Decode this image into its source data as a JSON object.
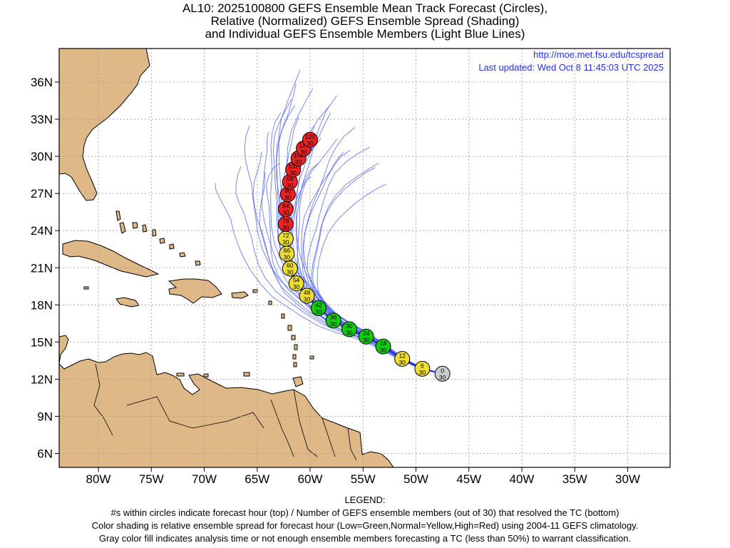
{
  "title": {
    "line1": "AL10: 2025100800 GEFS Ensemble Mean Track Forecast (Circles),",
    "line2": "Relative (Normalized) GEFS Ensemble Spread (Shading)",
    "line3": "and Individual GEFS Ensemble Members (Light Blue Lines)"
  },
  "credit": {
    "url": "http://moe.met.fsu.edu/tcspread",
    "updated": "Last updated: Wed Oct 8 11:45:03 UTC 2025"
  },
  "legend": {
    "heading": "LEGEND:",
    "line1": "#s within circles indicate forecast hour (top) / Number of GEFS ensemble members (out of 30) that resolved the TC (bottom)",
    "line2": "Color shading is relative ensemble spread for forecast hour (Low=Green,Normal=Yellow,High=Red) using 2004-11 GEFS climatology.",
    "line3": "Gray color fill indicates analysis time or not enough ensemble members forecasting a TC (less than 50%) to warrant classification."
  },
  "colors": {
    "land": "#deb887",
    "member_line": "#5566ee",
    "grid": "#999999",
    "low": "#11cc11",
    "normal": "#eedd33",
    "high": "#ee2222",
    "analysis": "#cccccc",
    "credit_text": "#2233dd"
  },
  "axes": {
    "lon_labels": [
      "80W",
      "75W",
      "70W",
      "65W",
      "60W",
      "55W",
      "50W",
      "45W",
      "40W",
      "35W",
      "30W"
    ],
    "lat_labels": [
      "36N",
      "33N",
      "30N",
      "27N",
      "24N",
      "21N",
      "18N",
      "15N",
      "12N",
      "9N",
      "6N"
    ]
  },
  "track": [
    {
      "hour": "0",
      "members": "30",
      "lat": 12.3,
      "lon": -47.5,
      "spread": "analysis"
    },
    {
      "hour": "6",
      "members": "30",
      "lat": 12.7,
      "lon": -49.4,
      "spread": "normal"
    },
    {
      "hour": "12",
      "members": "30",
      "lat": 13.5,
      "lon": -51.3,
      "spread": "normal"
    },
    {
      "hour": "18",
      "members": "30",
      "lat": 14.5,
      "lon": -53.1,
      "spread": "low"
    },
    {
      "hour": "24",
      "members": "30",
      "lat": 15.3,
      "lon": -54.7,
      "spread": "low"
    },
    {
      "hour": "30",
      "members": "30",
      "lat": 15.9,
      "lon": -56.3,
      "spread": "low"
    },
    {
      "hour": "36",
      "members": "30",
      "lat": 16.6,
      "lon": -57.8,
      "spread": "low"
    },
    {
      "hour": "42",
      "members": "30",
      "lat": 17.6,
      "lon": -59.2,
      "spread": "low"
    },
    {
      "hour": "48",
      "members": "30",
      "lat": 18.6,
      "lon": -60.3,
      "spread": "normal"
    },
    {
      "hour": "54",
      "members": "30",
      "lat": 19.6,
      "lon": -61.3,
      "spread": "normal"
    },
    {
      "hour": "60",
      "members": "30",
      "lat": 20.8,
      "lon": -61.9,
      "spread": "normal"
    },
    {
      "hour": "66",
      "members": "30",
      "lat": 22.0,
      "lon": -62.2,
      "spread": "normal"
    },
    {
      "hour": "72",
      "members": "30",
      "lat": 23.2,
      "lon": -62.3,
      "spread": "normal"
    },
    {
      "hour": "78",
      "members": "30",
      "lat": 24.4,
      "lon": -62.3,
      "spread": "high"
    },
    {
      "hour": "84",
      "members": "30",
      "lat": 25.6,
      "lon": -62.3,
      "spread": "high"
    },
    {
      "hour": "90",
      "members": "30",
      "lat": 26.8,
      "lon": -62.1,
      "spread": "high"
    },
    {
      "hour": "96",
      "members": "30",
      "lat": 27.8,
      "lon": -61.9,
      "spread": "high"
    },
    {
      "hour": "102",
      "members": "30",
      "lat": 28.8,
      "lon": -61.6,
      "spread": "high"
    },
    {
      "hour": "108",
      "members": "30",
      "lat": 29.7,
      "lon": -61.1,
      "spread": "high"
    },
    {
      "hour": "114",
      "members": "30",
      "lat": 30.5,
      "lon": -60.6,
      "spread": "high"
    },
    {
      "hour": "120",
      "members": "30",
      "lat": 31.2,
      "lon": -60.0,
      "spread": "high"
    }
  ]
}
